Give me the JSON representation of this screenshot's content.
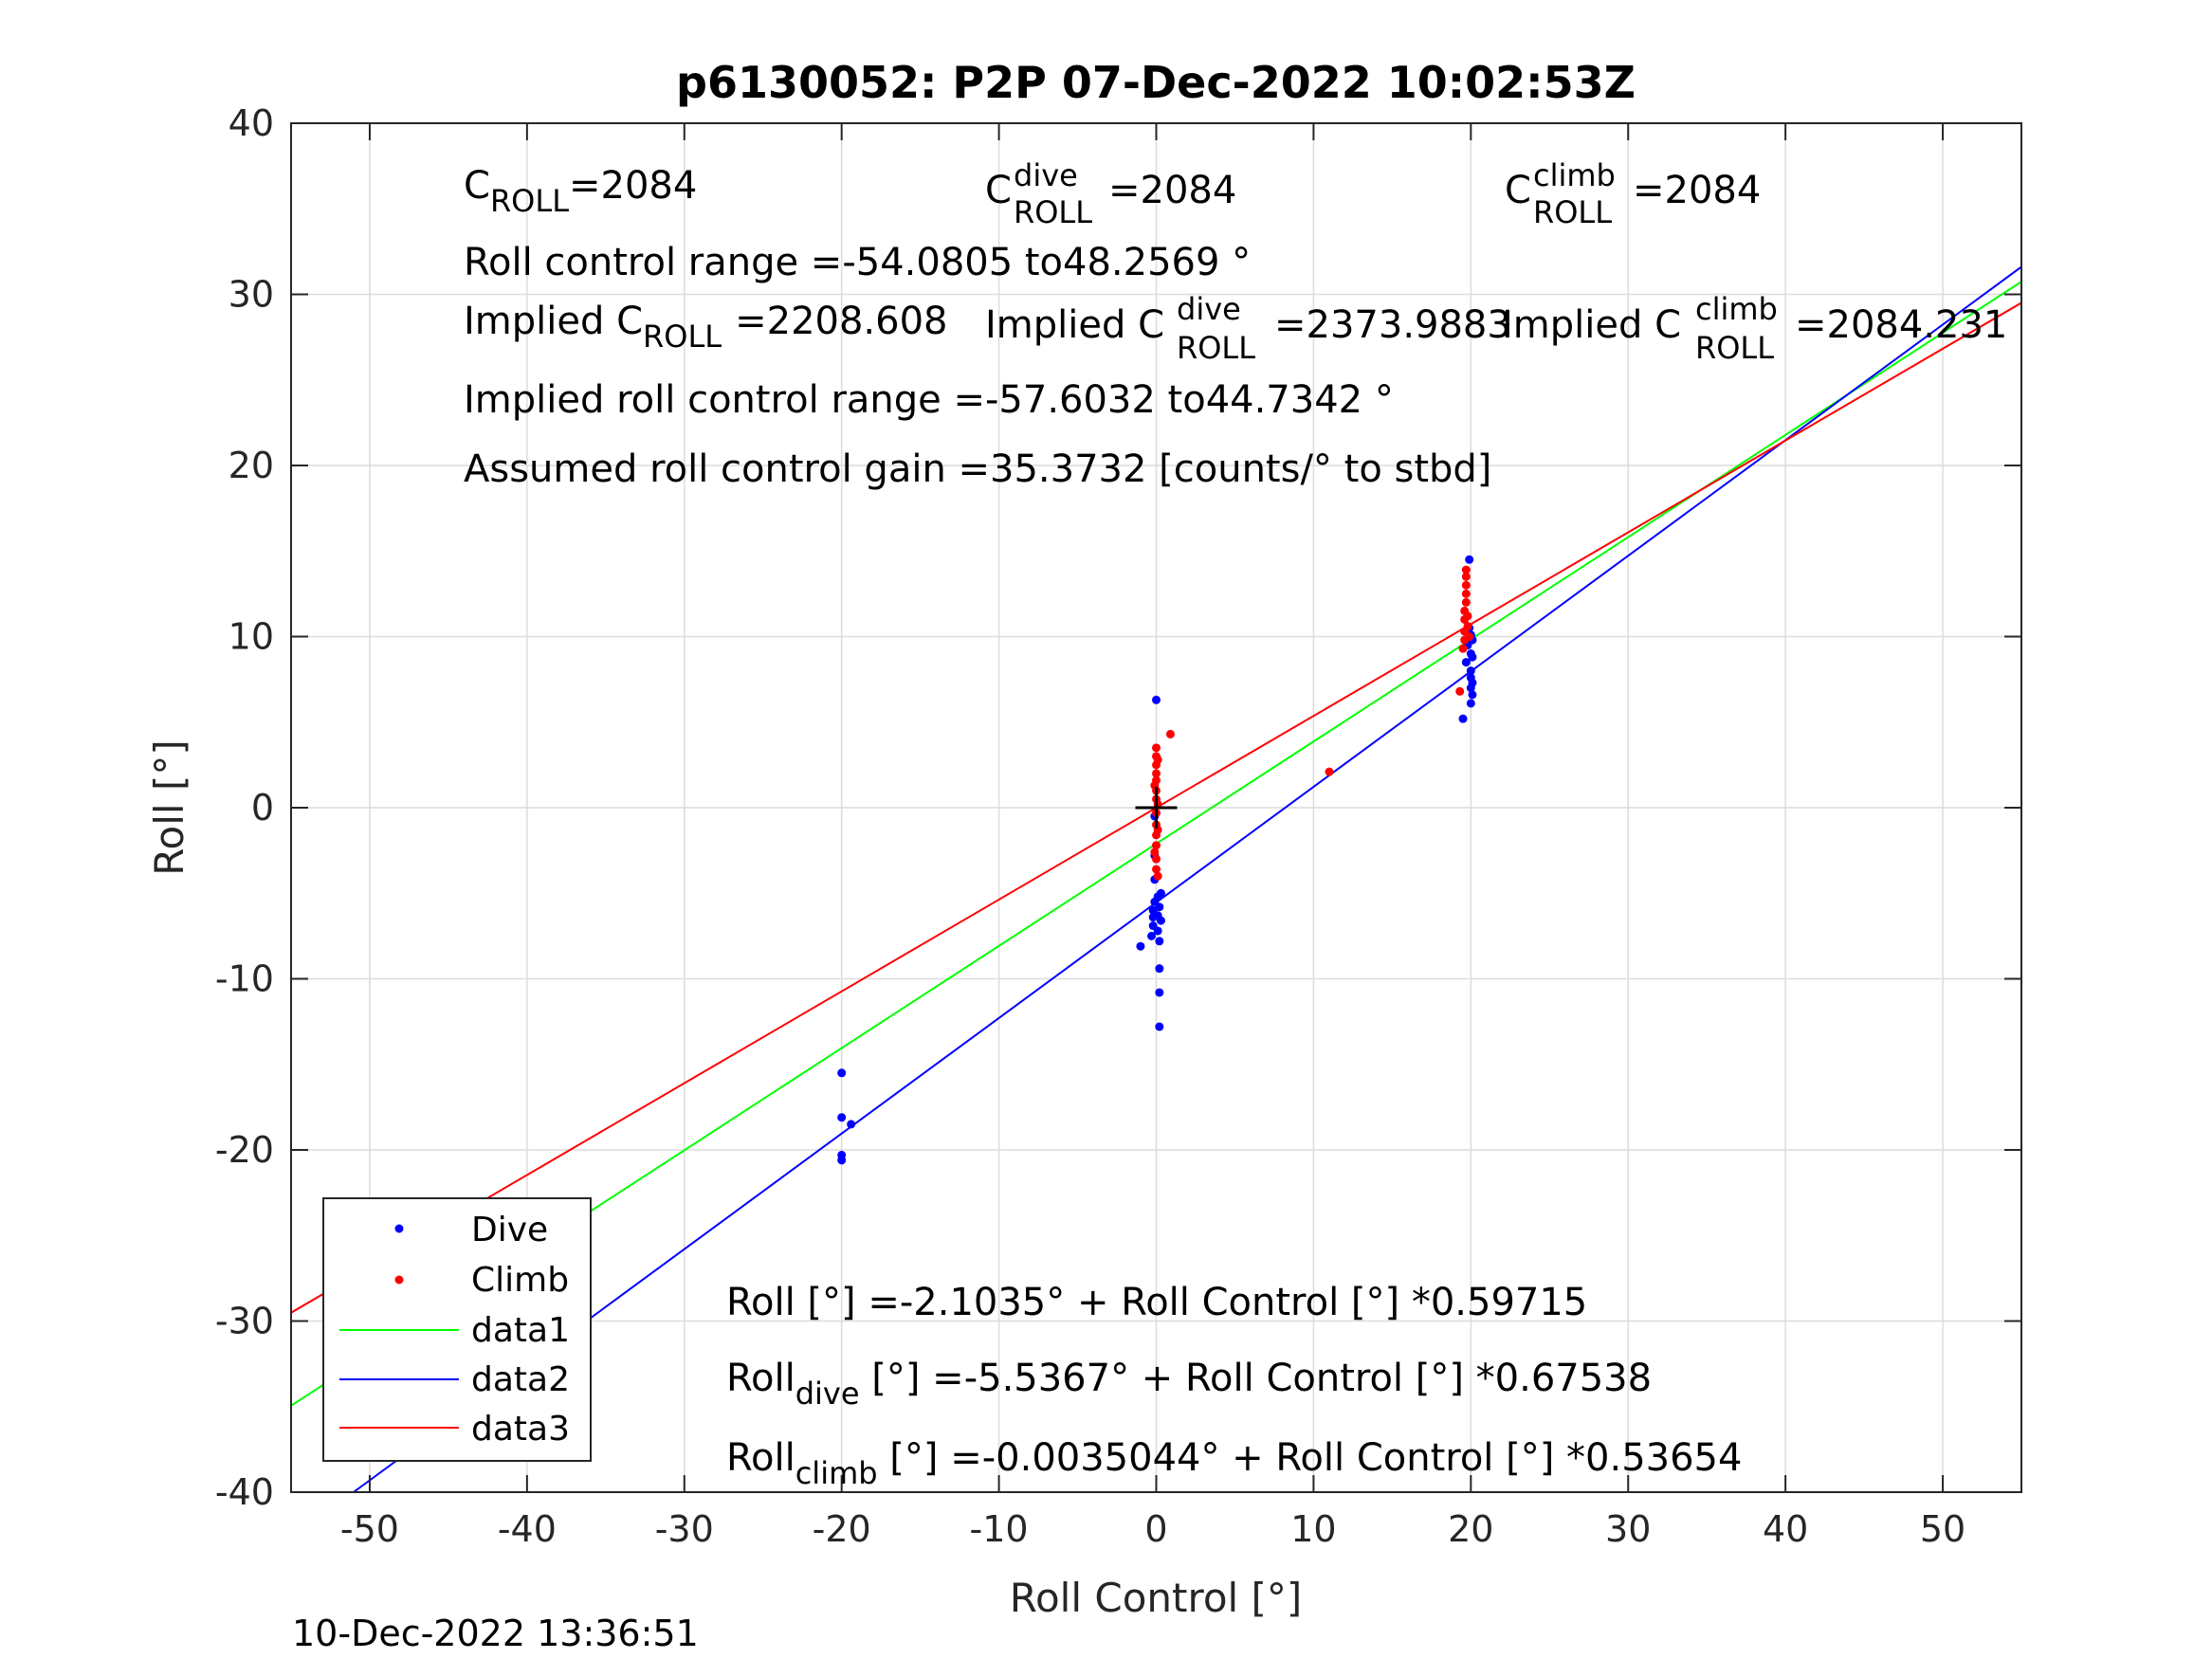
{
  "chart_data": {
    "type": "scatter",
    "title": "p6130052: P2P 07-Dec-2022 10:02:53Z",
    "xlabel": "Roll Control [°]",
    "ylabel": "Roll [°]",
    "xlim": [
      -55,
      55
    ],
    "ylim": [
      -40,
      40
    ],
    "grid": true,
    "x_ticks": [
      -50,
      -40,
      -30,
      -20,
      -10,
      0,
      10,
      20,
      30,
      40,
      50
    ],
    "y_ticks": [
      -40,
      -30,
      -20,
      -10,
      0,
      10,
      20,
      30,
      40
    ],
    "x_tick_labels": [
      "-50",
      "-40",
      "-30",
      "-20",
      "-10",
      "0",
      "10",
      "20",
      "30",
      "40",
      "50"
    ],
    "y_tick_labels": [
      "-40",
      "-30",
      "-20",
      "-10",
      "0",
      "10",
      "20",
      "30",
      "40"
    ],
    "legend_position": "bottom-left",
    "timestamp": "10-Dec-2022 13:36:51",
    "center_marker": {
      "x": 0,
      "y": 0
    },
    "series": [
      {
        "name": "Dive",
        "kind": "points",
        "color": "#0000ff",
        "points": [
          [
            -20.0,
            -15.5
          ],
          [
            -20.0,
            -18.1
          ],
          [
            -20.0,
            -20.3
          ],
          [
            -20.0,
            -20.6
          ],
          [
            -19.4,
            -18.5
          ],
          [
            -1.0,
            -8.1
          ],
          [
            -0.3,
            -7.5
          ],
          [
            -0.2,
            -6.9
          ],
          [
            -0.2,
            -6.0
          ],
          [
            -0.1,
            -5.5
          ],
          [
            -0.1,
            -4.2
          ],
          [
            -0.1,
            -2.8
          ],
          [
            -0.1,
            -0.5
          ],
          [
            0.0,
            6.3
          ],
          [
            0.1,
            -5.2
          ],
          [
            0.1,
            -6.3
          ],
          [
            0.2,
            -7.8
          ],
          [
            0.2,
            -9.4
          ],
          [
            0.2,
            -10.8
          ],
          [
            0.2,
            -12.8
          ],
          [
            0.2,
            -5.8
          ],
          [
            0.1,
            -7.2
          ],
          [
            0.3,
            -6.6
          ],
          [
            0.3,
            -5.0
          ],
          [
            -0.2,
            -6.4
          ],
          [
            19.5,
            5.2
          ],
          [
            19.7,
            8.5
          ],
          [
            19.8,
            9.5
          ],
          [
            19.9,
            10.5
          ],
          [
            19.9,
            14.5
          ],
          [
            20.0,
            6.1
          ],
          [
            20.0,
            7.0
          ],
          [
            20.0,
            7.6
          ],
          [
            20.0,
            8.0
          ],
          [
            20.0,
            9.0
          ],
          [
            20.0,
            10.1
          ],
          [
            20.1,
            6.6
          ],
          [
            20.1,
            7.3
          ],
          [
            20.1,
            8.8
          ],
          [
            20.1,
            9.8
          ]
        ]
      },
      {
        "name": "Climb",
        "kind": "points",
        "color": "#ff0000",
        "points": [
          [
            0.0,
            3.5
          ],
          [
            0.0,
            3.0
          ],
          [
            0.0,
            2.5
          ],
          [
            0.0,
            2.0
          ],
          [
            0.0,
            1.6
          ],
          [
            0.0,
            1.0
          ],
          [
            0.0,
            0.5
          ],
          [
            0.0,
            -0.3
          ],
          [
            0.0,
            -1.0
          ],
          [
            0.0,
            -1.6
          ],
          [
            0.0,
            -2.2
          ],
          [
            0.0,
            -3.0
          ],
          [
            0.0,
            -3.6
          ],
          [
            0.1,
            -4.0
          ],
          [
            0.1,
            0.2
          ],
          [
            0.1,
            2.8
          ],
          [
            -0.1,
            1.3
          ],
          [
            -0.1,
            -2.6
          ],
          [
            0.1,
            -1.3
          ],
          [
            0.9,
            4.3
          ],
          [
            11.0,
            2.1
          ],
          [
            19.3,
            6.8
          ],
          [
            19.5,
            9.3
          ],
          [
            19.6,
            9.8
          ],
          [
            19.6,
            10.3
          ],
          [
            19.6,
            11.0
          ],
          [
            19.6,
            11.5
          ],
          [
            19.7,
            12.0
          ],
          [
            19.7,
            12.5
          ],
          [
            19.7,
            13.0
          ],
          [
            19.7,
            13.5
          ],
          [
            19.7,
            13.9
          ],
          [
            19.8,
            11.2
          ],
          [
            19.8,
            10.6
          ],
          [
            19.9,
            10.0
          ]
        ]
      },
      {
        "name": "data1",
        "kind": "line",
        "color": "#00ff00",
        "x": [
          -55,
          55
        ],
        "y": [
          -34.947,
          30.74
        ]
      },
      {
        "name": "data2",
        "kind": "line",
        "color": "#0000ff",
        "x": [
          -55,
          55
        ],
        "y": [
          -42.683,
          31.609
        ]
      },
      {
        "name": "data3",
        "kind": "line",
        "color": "#ff0000",
        "x": [
          -55,
          55
        ],
        "y": [
          -29.513,
          29.506
        ]
      }
    ],
    "annotations_top": {
      "c_roll_main": "C",
      "c_roll_sub": "ROLL",
      "c_roll_value": "=2084",
      "c_dive_main": "C",
      "c_dive_sup": "dive",
      "c_dive_sub": "ROLL",
      "c_dive_value": "=2084",
      "c_climb_main": "C",
      "c_climb_sup": "climb",
      "c_climb_sub": "ROLL",
      "c_climb_value": "=2084",
      "control_range": "Roll control range =-54.0805 to48.2569 °",
      "implied_c_roll_main": "Implied C",
      "implied_c_roll_sub": "ROLL",
      "implied_c_roll_value": "=2208.608",
      "implied_c_dive_main": "Implied C",
      "implied_c_dive_sup": "dive",
      "implied_c_dive_sub": "ROLL",
      "implied_c_dive_value": "=2373.9883",
      "implied_c_climb_main": "Implied C",
      "implied_c_climb_sup": "climb",
      "implied_c_climb_sub": "ROLL",
      "implied_c_climb_value": "=2084.231",
      "implied_range": "Implied roll control range =-57.6032 to44.7342 °",
      "gain": "Assumed roll control gain =35.3732 [counts/° to stbd]"
    },
    "annotations_bottom": {
      "fit_all": "Roll [°] =-2.1035° + Roll Control [°] *0.59715",
      "fit_dive_main": "Roll",
      "fit_dive_sub": "dive",
      "fit_dive_rest": " [°] =-5.5367° + Roll Control [°] *0.67538",
      "fit_climb_main": "Roll",
      "fit_climb_sub": "climb",
      "fit_climb_rest": " [°] =-0.0035044° + Roll Control [°] *0.53654"
    }
  }
}
